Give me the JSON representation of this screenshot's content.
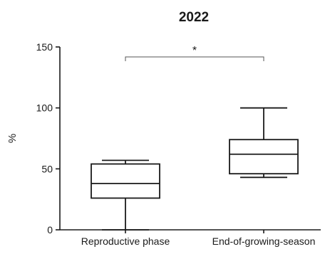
{
  "chart_data": {
    "type": "box",
    "title": "2022",
    "xlabel": "",
    "ylabel": "%",
    "ylim": [
      0,
      150
    ],
    "yticks": [
      0,
      50,
      100,
      150
    ],
    "categories": [
      "Reproductive phase",
      "End-of-growing-season"
    ],
    "boxes": [
      {
        "category": "Reproductive phase",
        "min": 0,
        "q1": 26,
        "median": 38,
        "q3": 54,
        "max": 57
      },
      {
        "category": "End-of-growing-season",
        "min": 43,
        "q1": 46,
        "median": 62,
        "q3": 74,
        "max": 100
      }
    ],
    "significance": {
      "label": "*",
      "between": [
        "Reproductive phase",
        "End-of-growing-season"
      ]
    },
    "grid": false,
    "legend": "none"
  },
  "colors": {
    "stroke": "#1a1a1a",
    "background": "#ffffff"
  }
}
